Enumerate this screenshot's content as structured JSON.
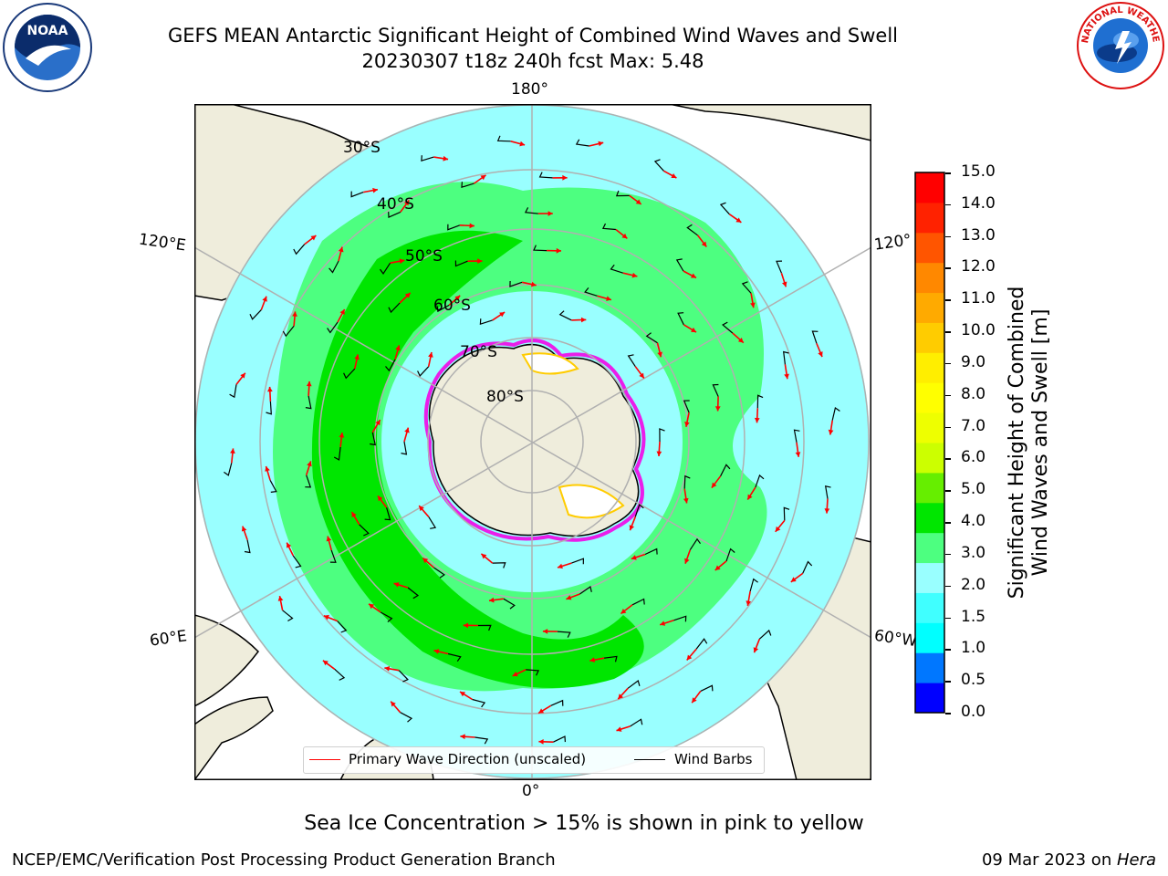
{
  "header": {
    "title_line1": "GEFS MEAN Antarctic Significant Height of Combined Wind Waves and Swell",
    "title_line2": "20230307 t18z 240h fcst   Max: 5.48"
  },
  "logos": {
    "left": {
      "icon": "noaa-logo",
      "text": "NOAA"
    },
    "right": {
      "icon": "nws-logo",
      "text": "NATIONAL WEATHER SERVICE"
    }
  },
  "map": {
    "projection": "south-polar-stereographic",
    "longitude_labels": {
      "top": "180°",
      "bottom": "0°",
      "upper_left": "120°E",
      "lower_left": "60°E",
      "upper_right": "120°",
      "lower_right": "60°W"
    },
    "latitude_labels": [
      "30°S",
      "40°S",
      "50°S",
      "60°S",
      "70°S",
      "80°S"
    ],
    "colors": {
      "land": "#efeddc",
      "graticule": "#b0b0b0",
      "sea_ice_edge": "#e91ee9",
      "wind_barb": "#000000",
      "wave_arrow": "#ff0000"
    }
  },
  "legend": {
    "primary_wave_label": "Primary Wave Direction (unscaled)",
    "primary_wave_color": "#ff0000",
    "wind_barbs_label": "Wind Barbs",
    "wind_barbs_color": "#000000"
  },
  "colorbar": {
    "label_line1": "Significant Height of Combined",
    "label_line2": "Wind Waves and Swell [m]",
    "ticks": [
      "15.0",
      "14.0",
      "13.0",
      "12.0",
      "11.0",
      "10.0",
      "9.0",
      "8.0",
      "7.0",
      "6.0",
      "5.0",
      "4.0",
      "3.0",
      "2.0",
      "1.5",
      "1.0",
      "0.5",
      "0.0"
    ],
    "colors_bottom_to_top": [
      "#0000ff",
      "#0077ff",
      "#00ffff",
      "#40ffff",
      "#99ffff",
      "#4dff80",
      "#00e600",
      "#66ee00",
      "#ccff00",
      "#eeff00",
      "#ffff00",
      "#ffee00",
      "#ffcc00",
      "#ffaa00",
      "#ff8800",
      "#ff5500",
      "#ff2200",
      "#ff0000"
    ]
  },
  "notes": {
    "sea_ice": "Sea Ice Concentration > 15% is shown in pink to yellow"
  },
  "footer": {
    "left": "NCEP/EMC/Verification Post Processing Product Generation Branch",
    "right_date": "09 Mar 2023 on ",
    "right_machine": "Hera"
  }
}
